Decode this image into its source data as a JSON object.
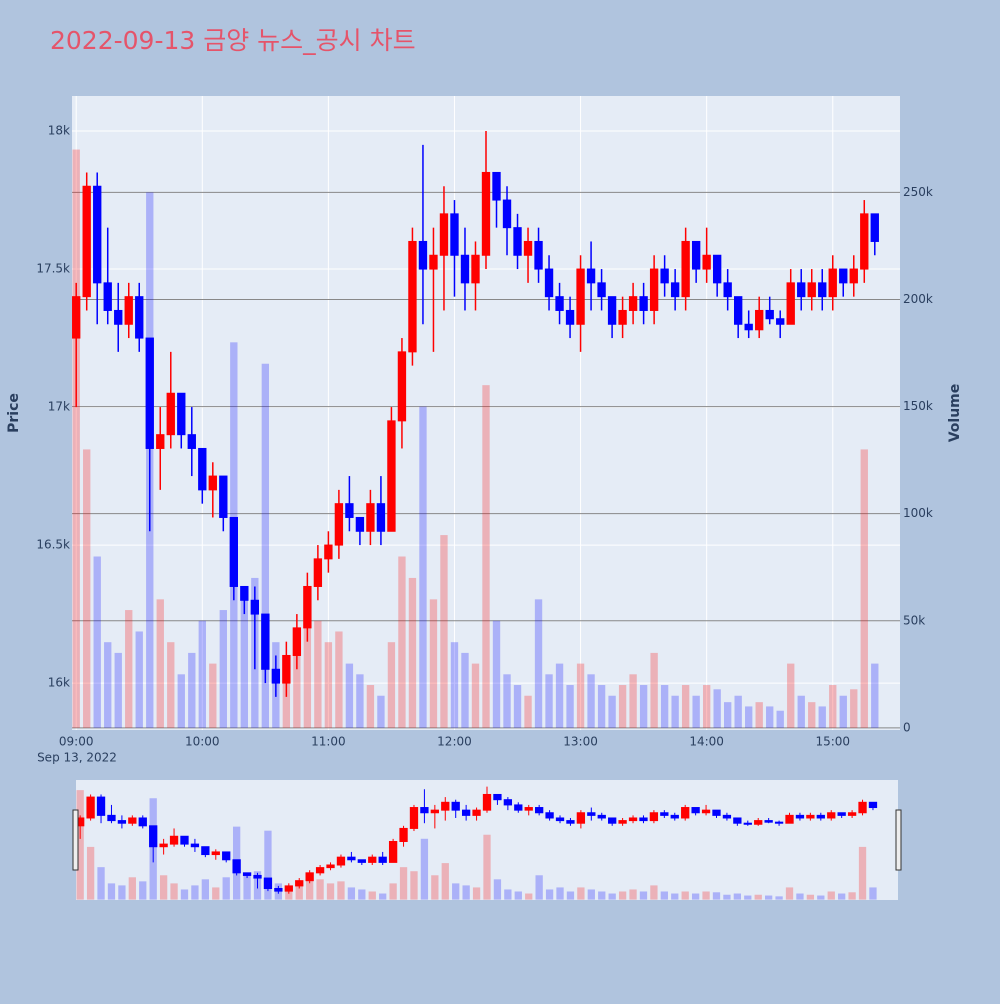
{
  "chart_data": {
    "type": "candlestick",
    "title": "2022-09-13 금양 뉴스_공시 차트",
    "y_title": "Price",
    "y2_title": "Volume",
    "x_date_label": "Sep 13, 2022",
    "xlim": [
      "08:58",
      "15:32"
    ],
    "xticks": [
      "09:00",
      "10:00",
      "11:00",
      "12:00",
      "13:00",
      "14:00",
      "15:00"
    ],
    "ylim": [
      15830,
      18127
    ],
    "yticks": [
      {
        "value": 16000,
        "label": "16k"
      },
      {
        "value": 16500,
        "label": "16.5k"
      },
      {
        "value": 17000,
        "label": "17k"
      },
      {
        "value": 17500,
        "label": "17.5k"
      },
      {
        "value": 18000,
        "label": "18k"
      }
    ],
    "y2lim": [
      -1000,
      295000
    ],
    "y2ticks": [
      0,
      {
        "value": 50000,
        "label": "50k"
      },
      {
        "value": 100000,
        "label": "100k"
      },
      {
        "value": 150000,
        "label": "150k"
      },
      {
        "value": 200000,
        "label": "200k"
      },
      {
        "value": 250000,
        "label": "250k"
      }
    ],
    "increasing_color": "#ff0000",
    "decreasing_color": "#0000ff",
    "rangeslider": true,
    "x": [
      "09:00",
      "09:05",
      "09:10",
      "09:15",
      "09:20",
      "09:25",
      "09:30",
      "09:35",
      "09:40",
      "09:45",
      "09:50",
      "09:55",
      "10:00",
      "10:05",
      "10:10",
      "10:15",
      "10:20",
      "10:25",
      "10:30",
      "10:35",
      "10:40",
      "10:45",
      "10:50",
      "10:55",
      "11:00",
      "11:05",
      "11:10",
      "11:15",
      "11:20",
      "11:25",
      "11:30",
      "11:35",
      "11:40",
      "11:45",
      "11:50",
      "11:55",
      "12:00",
      "12:05",
      "12:10",
      "12:15",
      "12:20",
      "12:25",
      "12:30",
      "12:35",
      "12:40",
      "12:45",
      "12:50",
      "12:55",
      "13:00",
      "13:05",
      "13:10",
      "13:15",
      "13:20",
      "13:25",
      "13:30",
      "13:35",
      "13:40",
      "13:45",
      "13:50",
      "13:55",
      "14:00",
      "14:05",
      "14:10",
      "14:15",
      "14:20",
      "14:25",
      "14:30",
      "14:35",
      "14:40",
      "14:45",
      "14:50",
      "14:55",
      "15:00",
      "15:05",
      "15:10",
      "15:15",
      "15:20"
    ],
    "open": [
      17250,
      17400,
      17800,
      17450,
      17350,
      17300,
      17400,
      17250,
      16850,
      16900,
      17050,
      16900,
      16850,
      16700,
      16750,
      16600,
      16350,
      16300,
      16250,
      16050,
      16000,
      16100,
      16200,
      16350,
      16450,
      16500,
      16650,
      16600,
      16550,
      16650,
      16550,
      16950,
      17200,
      17600,
      17500,
      17550,
      17700,
      17550,
      17450,
      17550,
      17850,
      17750,
      17650,
      17550,
      17600,
      17500,
      17400,
      17350,
      17300,
      17500,
      17450,
      17400,
      17300,
      17350,
      17400,
      17350,
      17500,
      17450,
      17400,
      17600,
      17500,
      17550,
      17450,
      17400,
      17300,
      17280,
      17350,
      17320,
      17300,
      17450,
      17400,
      17450,
      17400,
      17500,
      17450,
      17500,
      17700
    ],
    "high": [
      17450,
      17850,
      17850,
      17650,
      17450,
      17450,
      17450,
      17250,
      17000,
      17200,
      17050,
      17000,
      16850,
      16800,
      16750,
      16600,
      16350,
      16350,
      16250,
      16100,
      16150,
      16250,
      16400,
      16500,
      16550,
      16700,
      16750,
      16600,
      16700,
      16750,
      17000,
      17250,
      17650,
      17950,
      17650,
      17800,
      17750,
      17650,
      17600,
      18000,
      17850,
      17800,
      17700,
      17650,
      17650,
      17550,
      17450,
      17400,
      17550,
      17600,
      17500,
      17400,
      17400,
      17450,
      17450,
      17550,
      17550,
      17500,
      17650,
      17600,
      17650,
      17550,
      17500,
      17400,
      17350,
      17400,
      17400,
      17350,
      17500,
      17500,
      17500,
      17500,
      17550,
      17500,
      17550,
      17750,
      17700
    ],
    "low": [
      17000,
      17350,
      17300,
      17300,
      17200,
      17250,
      17200,
      16550,
      16700,
      16850,
      16850,
      16750,
      16650,
      16600,
      16550,
      16300,
      16250,
      16050,
      16000,
      15950,
      15950,
      16050,
      16150,
      16300,
      16400,
      16450,
      16550,
      16500,
      16500,
      16500,
      16550,
      16850,
      17150,
      17300,
      17200,
      17350,
      17400,
      17350,
      17350,
      17500,
      17650,
      17550,
      17500,
      17450,
      17450,
      17350,
      17300,
      17250,
      17200,
      17350,
      17350,
      17250,
      17250,
      17300,
      17300,
      17300,
      17400,
      17350,
      17350,
      17450,
      17450,
      17400,
      17350,
      17250,
      17250,
      17250,
      17300,
      17250,
      17300,
      17350,
      17350,
      17350,
      17350,
      17400,
      17400,
      17450,
      17550
    ],
    "close": [
      17400,
      17800,
      17450,
      17350,
      17300,
      17400,
      17250,
      16850,
      16900,
      17050,
      16900,
      16850,
      16700,
      16750,
      16600,
      16350,
      16300,
      16250,
      16050,
      16000,
      16100,
      16200,
      16350,
      16450,
      16500,
      16650,
      16600,
      16550,
      16650,
      16550,
      16950,
      17200,
      17600,
      17500,
      17550,
      17700,
      17550,
      17450,
      17550,
      17850,
      17750,
      17650,
      17550,
      17600,
      17500,
      17400,
      17350,
      17300,
      17500,
      17450,
      17400,
      17300,
      17350,
      17400,
      17350,
      17500,
      17450,
      17400,
      17600,
      17500,
      17550,
      17450,
      17400,
      17300,
      17280,
      17350,
      17320,
      17300,
      17450,
      17400,
      17450,
      17400,
      17500,
      17450,
      17500,
      17700,
      17600
    ],
    "volume": [
      270000,
      130000,
      80000,
      40000,
      35000,
      55000,
      45000,
      250000,
      60000,
      40000,
      25000,
      35000,
      50000,
      30000,
      55000,
      180000,
      60000,
      70000,
      170000,
      40000,
      30000,
      45000,
      60000,
      50000,
      40000,
      45000,
      30000,
      25000,
      20000,
      15000,
      40000,
      80000,
      70000,
      150000,
      60000,
      90000,
      40000,
      35000,
      30000,
      160000,
      50000,
      25000,
      20000,
      15000,
      60000,
      25000,
      30000,
      20000,
      30000,
      25000,
      20000,
      15000,
      20000,
      25000,
      20000,
      35000,
      20000,
      15000,
      20000,
      15000,
      20000,
      18000,
      12000,
      15000,
      10000,
      12000,
      10000,
      8000,
      30000,
      15000,
      12000,
      10000,
      20000,
      15000,
      18000,
      130000,
      30000
    ]
  }
}
